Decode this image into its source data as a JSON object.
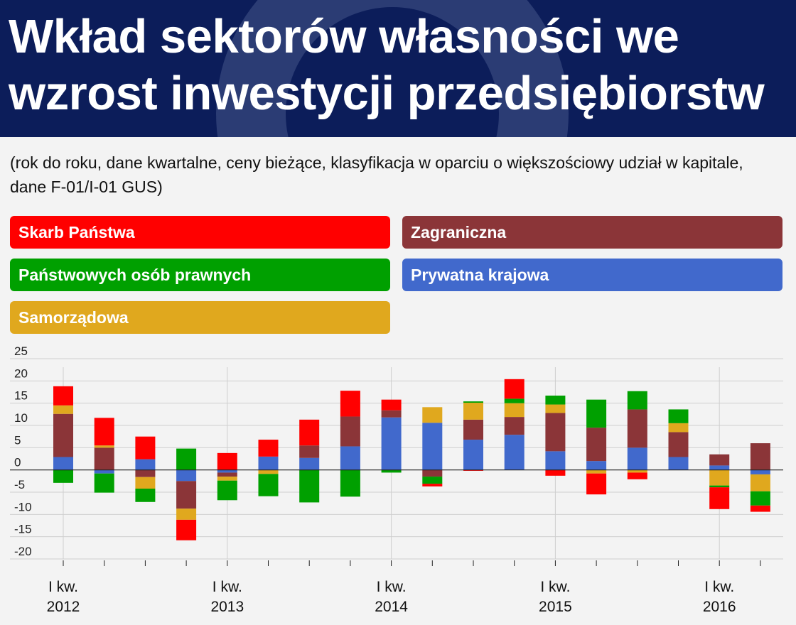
{
  "title": "Wkład sektorów własności we wzrost inwestycji przedsiębiorstw",
  "subtitle": "(rok do roku, dane kwartalne, ceny bieżące, klasyfikacja w oparciu o większościowy udział w kapitale, dane F-01/I-01 GUS)",
  "colors": {
    "header_bg": "#0c1d5a",
    "skarb": "#ff0000",
    "zagraniczna": "#8b3538",
    "panstwowe": "#00a000",
    "prywatna": "#4169cc",
    "samorzadowa": "#e0a81e"
  },
  "legend": [
    {
      "key": "skarb",
      "label": "Skarb Państwa"
    },
    {
      "key": "zagraniczna",
      "label": "Zagraniczna"
    },
    {
      "key": "panstwowe",
      "label": "Państwowych osób prawnych"
    },
    {
      "key": "prywatna",
      "label": "Prywatna krajowa"
    },
    {
      "key": "samorzadowa",
      "label": "Samorządowa"
    }
  ],
  "chart_data": {
    "type": "bar",
    "stacked": true,
    "x": [
      "2012 Q1",
      "2012 Q2",
      "2012 Q3",
      "2012 Q4",
      "2013 Q1",
      "2013 Q2",
      "2013 Q3",
      "2013 Q4",
      "2014 Q1",
      "2014 Q2",
      "2014 Q3",
      "2014 Q4",
      "2015 Q1",
      "2015 Q2",
      "2015 Q3",
      "2015 Q4",
      "2016 Q1",
      "2016 Q2"
    ],
    "x_tick_labels": [
      {
        "index": 0,
        "line1": "I kw.",
        "line2": "2012"
      },
      {
        "index": 4,
        "line1": "I kw.",
        "line2": "2013"
      },
      {
        "index": 8,
        "line1": "I kw.",
        "line2": "2014"
      },
      {
        "index": 12,
        "line1": "I kw.",
        "line2": "2015"
      },
      {
        "index": 16,
        "line1": "I kw.",
        "line2": "2016"
      }
    ],
    "ylim": [
      -20,
      25
    ],
    "yticks": [
      25,
      20,
      15,
      10,
      5,
      0,
      -5,
      -10,
      -15,
      -20
    ],
    "ytick_labels": [
      "25",
      "20",
      "15",
      "10",
      "5",
      "0",
      "-5",
      "-10",
      "-15",
      "-20"
    ],
    "grid": true,
    "series": [
      {
        "name": "Prywatna krajowa",
        "key": "prywatna",
        "values": [
          2.9,
          -0.8,
          2.4,
          -2.5,
          -0.6,
          3.0,
          2.7,
          5.3,
          11.8,
          10.6,
          6.8,
          7.9,
          4.2,
          2.0,
          5.0,
          2.9,
          1.0,
          -1.0
        ]
      },
      {
        "name": "Zagraniczna",
        "key": "zagraniczna",
        "values": [
          9.7,
          5.0,
          -1.6,
          -6.2,
          -0.9,
          0,
          2.8,
          6.7,
          1.6,
          -1.5,
          4.5,
          4.0,
          8.6,
          7.5,
          8.6,
          5.6,
          2.5,
          6.0
        ]
      },
      {
        "name": "Samorządowa",
        "key": "samorzadowa",
        "values": [
          1.9,
          0.5,
          -2.6,
          -2.5,
          -0.9,
          -0.9,
          0,
          0,
          0,
          3.5,
          3.8,
          3.1,
          1.9,
          -0.8,
          -0.6,
          2.0,
          -3.5,
          -3.8
        ]
      },
      {
        "name": "Państwowych osób prawnych",
        "key": "panstwowe",
        "values": [
          -2.9,
          -4.3,
          -3.0,
          4.8,
          -4.4,
          -5.0,
          -7.3,
          -6.0,
          -0.6,
          -1.6,
          0.3,
          1.0,
          2.0,
          6.3,
          4.1,
          3.1,
          -0.4,
          -3.2
        ]
      },
      {
        "name": "Skarb Państwa",
        "key": "skarb",
        "values": [
          4.3,
          6.2,
          5.1,
          -4.6,
          3.8,
          3.8,
          5.8,
          5.8,
          2.4,
          -0.6,
          -0.2,
          4.4,
          -1.3,
          -4.7,
          -1.5,
          0,
          -4.9,
          -1.4
        ]
      }
    ]
  }
}
